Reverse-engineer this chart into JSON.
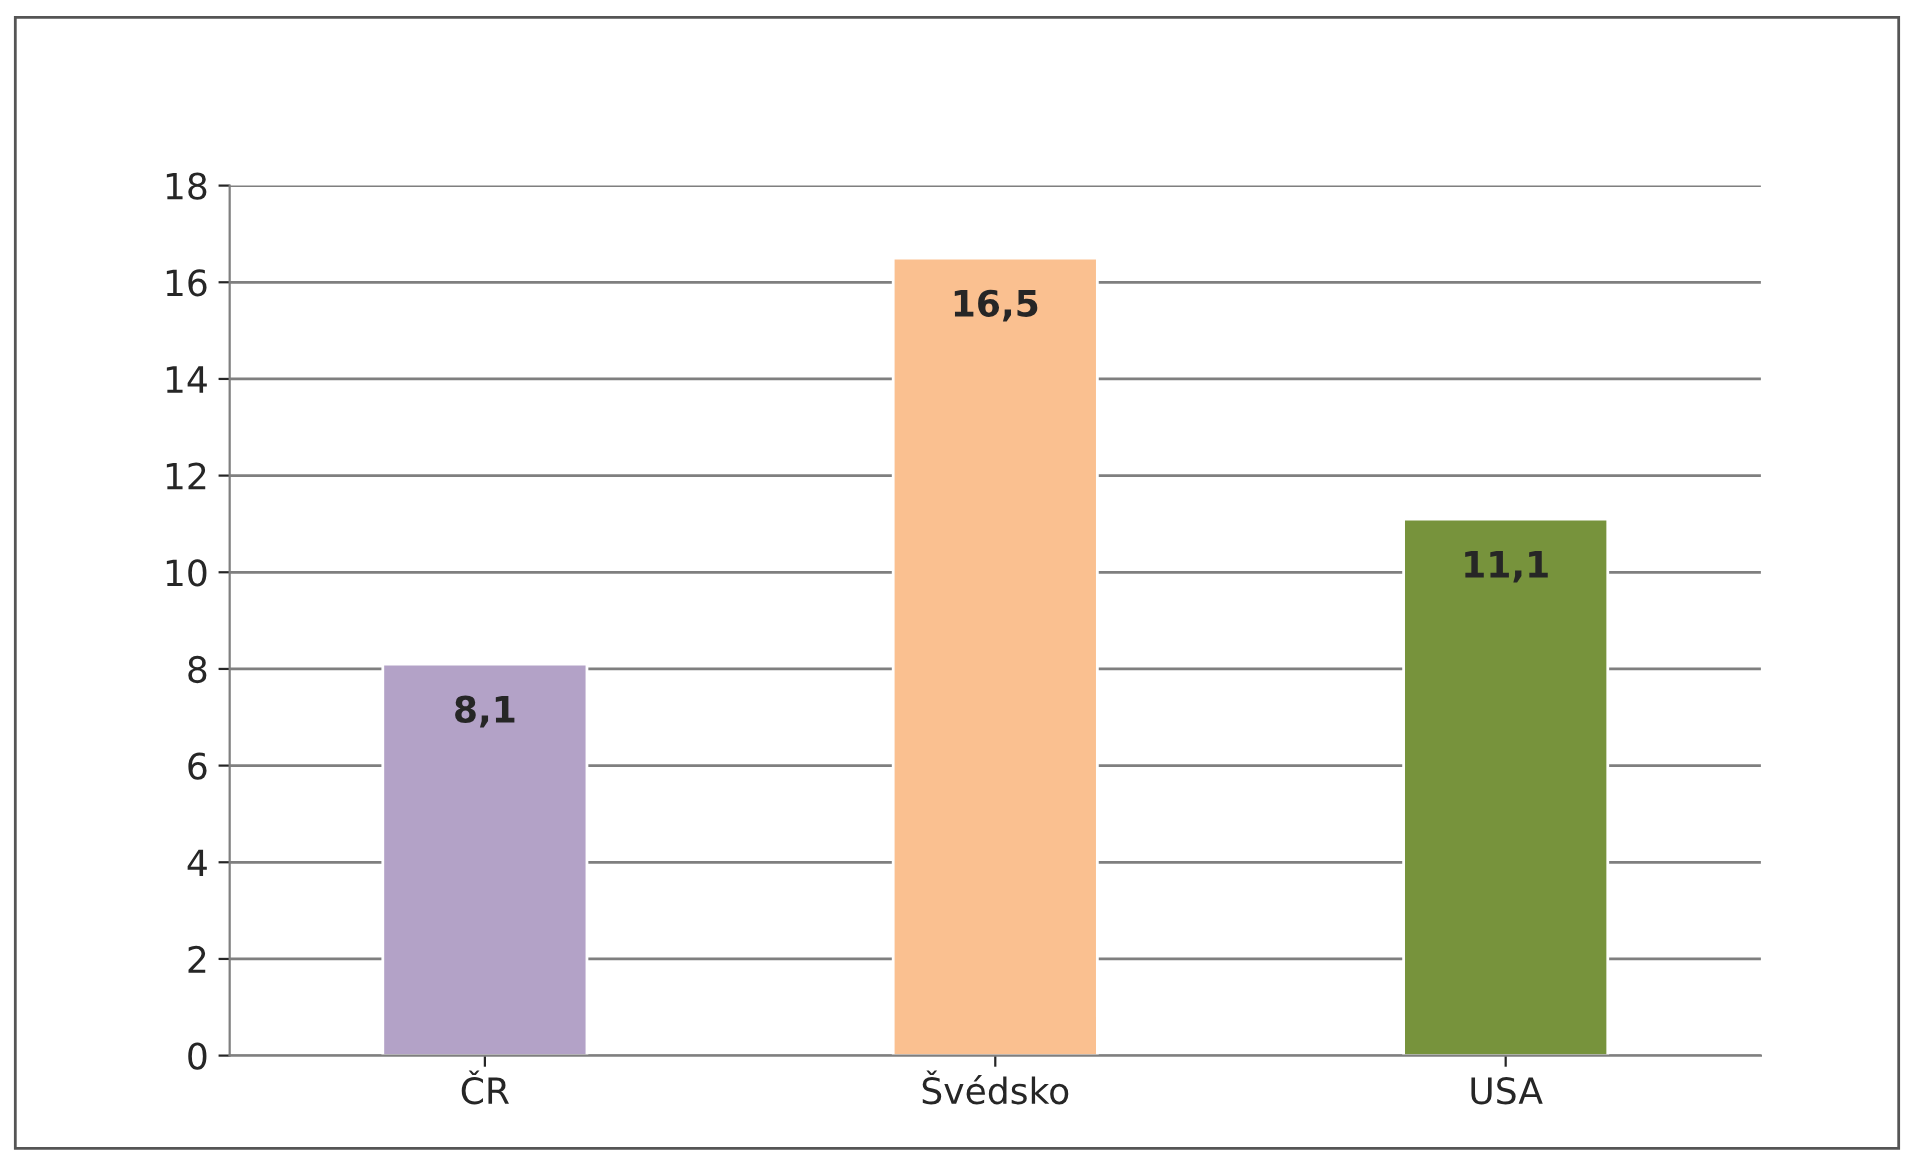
{
  "chart_data": {
    "type": "bar",
    "categories": [
      "ČR",
      "Švédsko",
      "USA"
    ],
    "values": [
      8.1,
      16.5,
      11.1
    ],
    "colors": [
      "#b3a2c7",
      "#fac090",
      "#77933c"
    ],
    "value_labels": [
      "8,1",
      "16,5",
      "11,1"
    ],
    "ylim": [
      0,
      18
    ],
    "yticks": [
      0,
      2,
      4,
      6,
      8,
      10,
      12,
      14,
      16,
      18
    ],
    "grid": "y",
    "legend": false
  }
}
